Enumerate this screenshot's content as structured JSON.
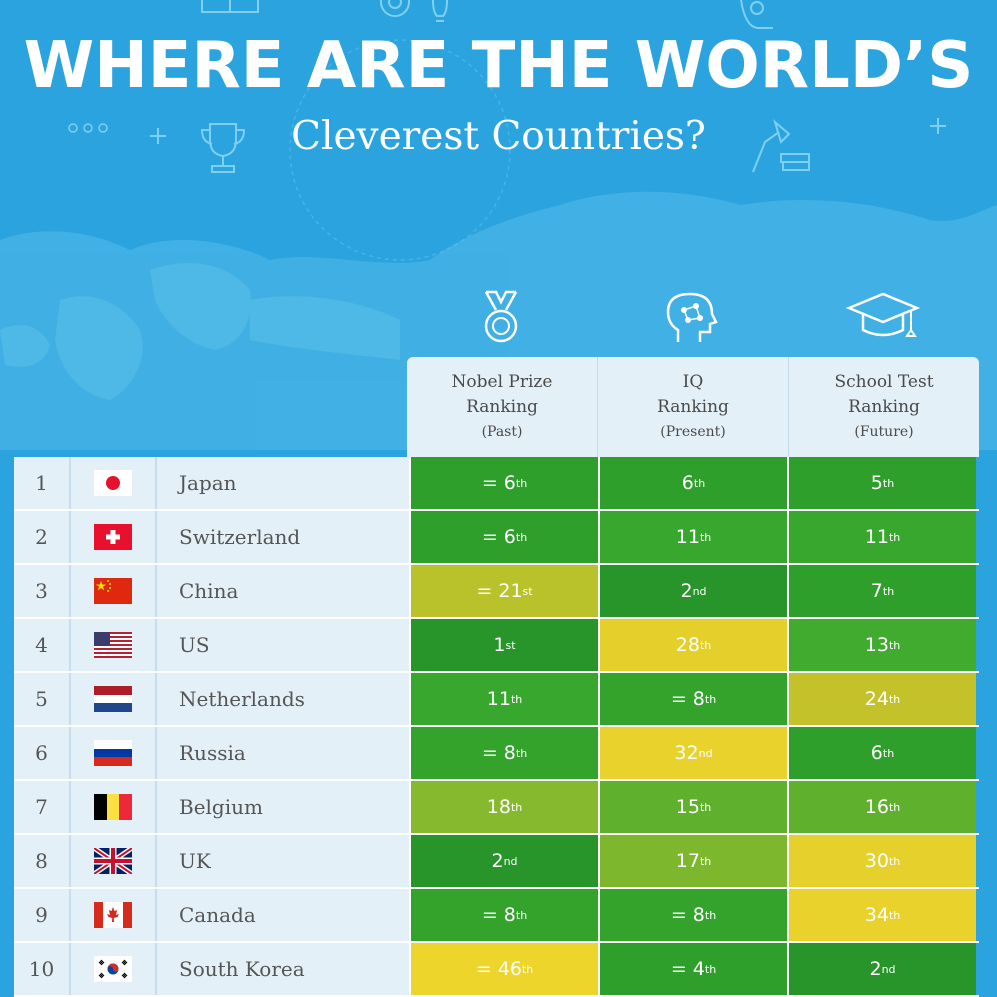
{
  "title": "WHERE ARE THE WORLD’S",
  "subtitle": "Cleverest Countries?",
  "columns": [
    {
      "label_line1": "Nobel Prize",
      "label_line2": "Ranking",
      "sub": "(Past)",
      "icon": "medal-icon"
    },
    {
      "label_line1": "IQ",
      "label_line2": "Ranking",
      "sub": "(Present)",
      "icon": "brain-head-icon"
    },
    {
      "label_line1": "School Test",
      "label_line2": "Ranking",
      "sub": "(Future)",
      "icon": "graduation-cap-icon"
    }
  ],
  "colors": {
    "background": "#2aa3de",
    "panel": "#e4f0f8",
    "dark_green": "#2a9a2a",
    "green": "#3fae2e",
    "light_green": "#79b72e",
    "olive": "#b8c22a",
    "yellow": "#e5cf2a"
  },
  "rows": [
    {
      "rank": "1",
      "country": "Japan",
      "flag": "japan-flag",
      "cells": [
        {
          "text": "= 6",
          "suffix": "th",
          "color": "#2e9f2b"
        },
        {
          "text": "6",
          "suffix": "th",
          "color": "#2e9f2b"
        },
        {
          "text": "5",
          "suffix": "th",
          "color": "#2e9f2b"
        }
      ]
    },
    {
      "rank": "2",
      "country": "Switzerland",
      "flag": "switzerland-flag",
      "cells": [
        {
          "text": "= 6",
          "suffix": "th",
          "color": "#2e9f2b"
        },
        {
          "text": "11",
          "suffix": "th",
          "color": "#38a72d"
        },
        {
          "text": "11",
          "suffix": "th",
          "color": "#38a72d"
        }
      ]
    },
    {
      "rank": "3",
      "country": "China",
      "flag": "china-flag",
      "cells": [
        {
          "text": "= 21",
          "suffix": "st",
          "color": "#b9c12b"
        },
        {
          "text": "2",
          "suffix": "nd",
          "color": "#27952a"
        },
        {
          "text": "7",
          "suffix": "th",
          "color": "#2e9f2b"
        }
      ]
    },
    {
      "rank": "4",
      "country": "US",
      "flag": "us-flag",
      "cells": [
        {
          "text": "1",
          "suffix": "st",
          "color": "#27952a"
        },
        {
          "text": "28",
          "suffix": "th",
          "color": "#e4cf2b"
        },
        {
          "text": "13",
          "suffix": "th",
          "color": "#40ab2e"
        }
      ]
    },
    {
      "rank": "5",
      "country": "Netherlands",
      "flag": "netherlands-flag",
      "cells": [
        {
          "text": "11",
          "suffix": "th",
          "color": "#38a72d"
        },
        {
          "text": "= 8",
          "suffix": "th",
          "color": "#33a32c"
        },
        {
          "text": "24",
          "suffix": "th",
          "color": "#c3c22b"
        }
      ]
    },
    {
      "rank": "6",
      "country": "Russia",
      "flag": "russia-flag",
      "cells": [
        {
          "text": "= 8",
          "suffix": "th",
          "color": "#33a32c"
        },
        {
          "text": "32",
          "suffix": "nd",
          "color": "#e8d22b"
        },
        {
          "text": "6",
          "suffix": "th",
          "color": "#2e9f2b"
        }
      ]
    },
    {
      "rank": "7",
      "country": "Belgium",
      "flag": "belgium-flag",
      "cells": [
        {
          "text": "18",
          "suffix": "th",
          "color": "#86b92d"
        },
        {
          "text": "15",
          "suffix": "th",
          "color": "#5fb02d"
        },
        {
          "text": "16",
          "suffix": "th",
          "color": "#5fb02d"
        }
      ]
    },
    {
      "rank": "8",
      "country": "UK",
      "flag": "uk-flag",
      "cells": [
        {
          "text": "2",
          "suffix": "nd",
          "color": "#27952a"
        },
        {
          "text": "17",
          "suffix": "th",
          "color": "#7db72d"
        },
        {
          "text": "30",
          "suffix": "th",
          "color": "#e6d02b"
        }
      ]
    },
    {
      "rank": "9",
      "country": "Canada",
      "flag": "canada-flag",
      "cells": [
        {
          "text": "= 8",
          "suffix": "th",
          "color": "#33a32c"
        },
        {
          "text": "= 8",
          "suffix": "th",
          "color": "#33a32c"
        },
        {
          "text": "34",
          "suffix": "th",
          "color": "#e8d22b"
        }
      ]
    },
    {
      "rank": "10",
      "country": "South Korea",
      "flag": "south-korea-flag",
      "cells": [
        {
          "text": "= 46",
          "suffix": "th",
          "color": "#eed52c"
        },
        {
          "text": "= 4",
          "suffix": "th",
          "color": "#2e9f2b"
        },
        {
          "text": "2",
          "suffix": "nd",
          "color": "#27952a"
        }
      ]
    }
  ]
}
